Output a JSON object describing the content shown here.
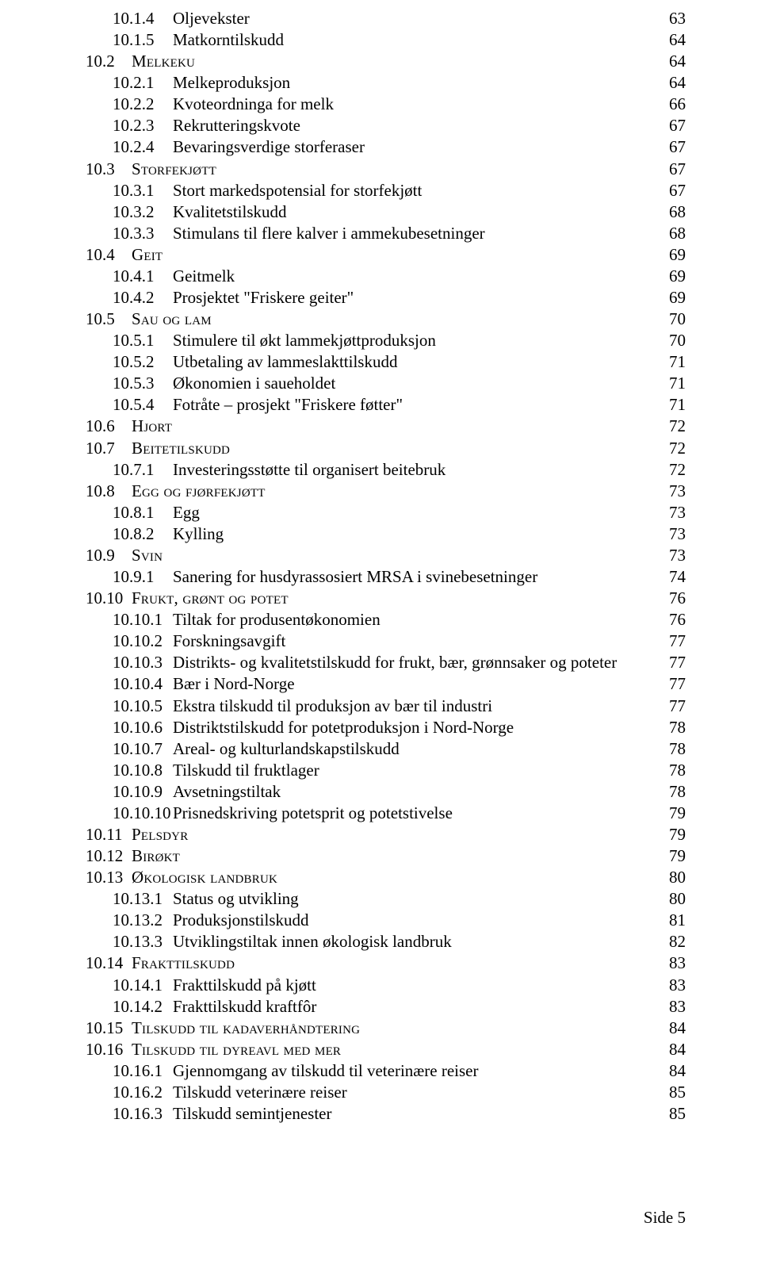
{
  "footer": "Side 5",
  "toc": [
    {
      "level": 2,
      "num": "10.1.4",
      "label": "Oljevekster",
      "page": "63",
      "sc": false
    },
    {
      "level": 2,
      "num": "10.1.5",
      "label": "Matkorntilskudd",
      "page": "64",
      "sc": false
    },
    {
      "level": 1,
      "num": "10.2",
      "label": "Melkeku",
      "page": "64",
      "sc": true
    },
    {
      "level": 2,
      "num": "10.2.1",
      "label": "Melkeproduksjon",
      "page": "64",
      "sc": false
    },
    {
      "level": 2,
      "num": "10.2.2",
      "label": "Kvoteordninga for melk",
      "page": "66",
      "sc": false
    },
    {
      "level": 2,
      "num": "10.2.3",
      "label": "Rekrutteringskvote",
      "page": "67",
      "sc": false
    },
    {
      "level": 2,
      "num": "10.2.4",
      "label": "Bevaringsverdige storferaser",
      "page": "67",
      "sc": false
    },
    {
      "level": 1,
      "num": "10.3",
      "label": "Storfekjøtt",
      "page": "67",
      "sc": true
    },
    {
      "level": 2,
      "num": "10.3.1",
      "label": "Stort markedspotensial for storfekjøtt",
      "page": "67",
      "sc": false
    },
    {
      "level": 2,
      "num": "10.3.2",
      "label": "Kvalitetstilskudd",
      "page": "68",
      "sc": false
    },
    {
      "level": 2,
      "num": "10.3.3",
      "label": "Stimulans til flere kalver i ammekubesetninger",
      "page": "68",
      "sc": false
    },
    {
      "level": 1,
      "num": "10.4",
      "label": "Geit",
      "page": "69",
      "sc": true
    },
    {
      "level": 2,
      "num": "10.4.1",
      "label": "Geitmelk",
      "page": "69",
      "sc": false
    },
    {
      "level": 2,
      "num": "10.4.2",
      "label": "Prosjektet \"Friskere geiter\"",
      "page": "69",
      "sc": false
    },
    {
      "level": 1,
      "num": "10.5",
      "label": "Sau og lam",
      "page": "70",
      "sc": true
    },
    {
      "level": 2,
      "num": "10.5.1",
      "label": "Stimulere til økt lammekjøttproduksjon",
      "page": "70",
      "sc": false
    },
    {
      "level": 2,
      "num": "10.5.2",
      "label": "Utbetaling av lammeslakttilskudd",
      "page": "71",
      "sc": false
    },
    {
      "level": 2,
      "num": "10.5.3",
      "label": "Økonomien i saueholdet",
      "page": "71",
      "sc": false
    },
    {
      "level": 2,
      "num": "10.5.4",
      "label": "Fotråte – prosjekt \"Friskere føtter\"",
      "page": "71",
      "sc": false
    },
    {
      "level": 1,
      "num": "10.6",
      "label": "Hjort",
      "page": "72",
      "sc": true
    },
    {
      "level": 1,
      "num": "10.7",
      "label": "Beitetilskudd",
      "page": "72",
      "sc": true
    },
    {
      "level": 2,
      "num": "10.7.1",
      "label": "Investeringsstøtte til organisert beitebruk",
      "page": "72",
      "sc": false
    },
    {
      "level": 1,
      "num": "10.8",
      "label": "Egg og fjørfekjøtt",
      "page": "73",
      "sc": true
    },
    {
      "level": 2,
      "num": "10.8.1",
      "label": "Egg",
      "page": "73",
      "sc": false
    },
    {
      "level": 2,
      "num": "10.8.2",
      "label": "Kylling",
      "page": "73",
      "sc": false
    },
    {
      "level": 1,
      "num": "10.9",
      "label": "Svin",
      "page": "73",
      "sc": true
    },
    {
      "level": 2,
      "num": "10.9.1",
      "label": "Sanering for husdyrassosiert MRSA i svinebesetninger",
      "page": "74",
      "sc": false
    },
    {
      "level": 1,
      "num": "10.10",
      "label": "Frukt, grønt og potet",
      "page": "76",
      "sc": true
    },
    {
      "level": 2,
      "num": "10.10.1",
      "label": "Tiltak for produsentøkonomien",
      "page": "76",
      "sc": false
    },
    {
      "level": 2,
      "num": "10.10.2",
      "label": "Forskningsavgift",
      "page": "77",
      "sc": false
    },
    {
      "level": 2,
      "num": "10.10.3",
      "label": "Distrikts- og kvalitetstilskudd for frukt, bær, grønnsaker og poteter",
      "page": "77",
      "sc": false
    },
    {
      "level": 2,
      "num": "10.10.4",
      "label": "Bær i Nord-Norge",
      "page": "77",
      "sc": false
    },
    {
      "level": 2,
      "num": "10.10.5",
      "label": "Ekstra tilskudd til produksjon av bær til industri",
      "page": "77",
      "sc": false
    },
    {
      "level": 2,
      "num": "10.10.6",
      "label": "Distriktstilskudd for potetproduksjon i Nord-Norge",
      "page": "78",
      "sc": false
    },
    {
      "level": 2,
      "num": "10.10.7",
      "label": "Areal- og kulturlandskapstilskudd",
      "page": "78",
      "sc": false
    },
    {
      "level": 2,
      "num": "10.10.8",
      "label": "Tilskudd til fruktlager",
      "page": "78",
      "sc": false
    },
    {
      "level": 2,
      "num": "10.10.9",
      "label": "Avsetningstiltak",
      "page": "78",
      "sc": false
    },
    {
      "level": 2,
      "num": "10.10.10",
      "label": "Prisnedskriving potetsprit og potetstivelse",
      "page": "79",
      "sc": false
    },
    {
      "level": 1,
      "num": "10.11",
      "label": "Pelsdyr",
      "page": "79",
      "sc": true
    },
    {
      "level": 1,
      "num": "10.12",
      "label": "Birøkt",
      "page": "79",
      "sc": true
    },
    {
      "level": 1,
      "num": "10.13",
      "label": "Økologisk landbruk",
      "page": "80",
      "sc": true
    },
    {
      "level": 2,
      "num": "10.13.1",
      "label": "Status og utvikling",
      "page": "80",
      "sc": false
    },
    {
      "level": 2,
      "num": "10.13.2",
      "label": "Produksjonstilskudd",
      "page": "81",
      "sc": false
    },
    {
      "level": 2,
      "num": "10.13.3",
      "label": "Utviklingstiltak innen økologisk landbruk",
      "page": "82",
      "sc": false
    },
    {
      "level": 1,
      "num": "10.14",
      "label": "Frakttilskudd",
      "page": "83",
      "sc": true
    },
    {
      "level": 2,
      "num": "10.14.1",
      "label": "Frakttilskudd på kjøtt",
      "page": "83",
      "sc": false
    },
    {
      "level": 2,
      "num": "10.14.2",
      "label": "Frakttilskudd kraftfôr",
      "page": "83",
      "sc": false
    },
    {
      "level": 1,
      "num": "10.15",
      "label": "Tilskudd til kadaverhåndtering",
      "page": "84",
      "sc": true
    },
    {
      "level": 1,
      "num": "10.16",
      "label": "Tilskudd til dyreavl med mer",
      "page": "84",
      "sc": true
    },
    {
      "level": 2,
      "num": "10.16.1",
      "label": "Gjennomgang av tilskudd til veterinære reiser",
      "page": "84",
      "sc": false
    },
    {
      "level": 2,
      "num": "10.16.2",
      "label": "Tilskudd veterinære reiser",
      "page": "85",
      "sc": false
    },
    {
      "level": 2,
      "num": "10.16.3",
      "label": "Tilskudd semintjenester",
      "page": "85",
      "sc": false
    }
  ]
}
